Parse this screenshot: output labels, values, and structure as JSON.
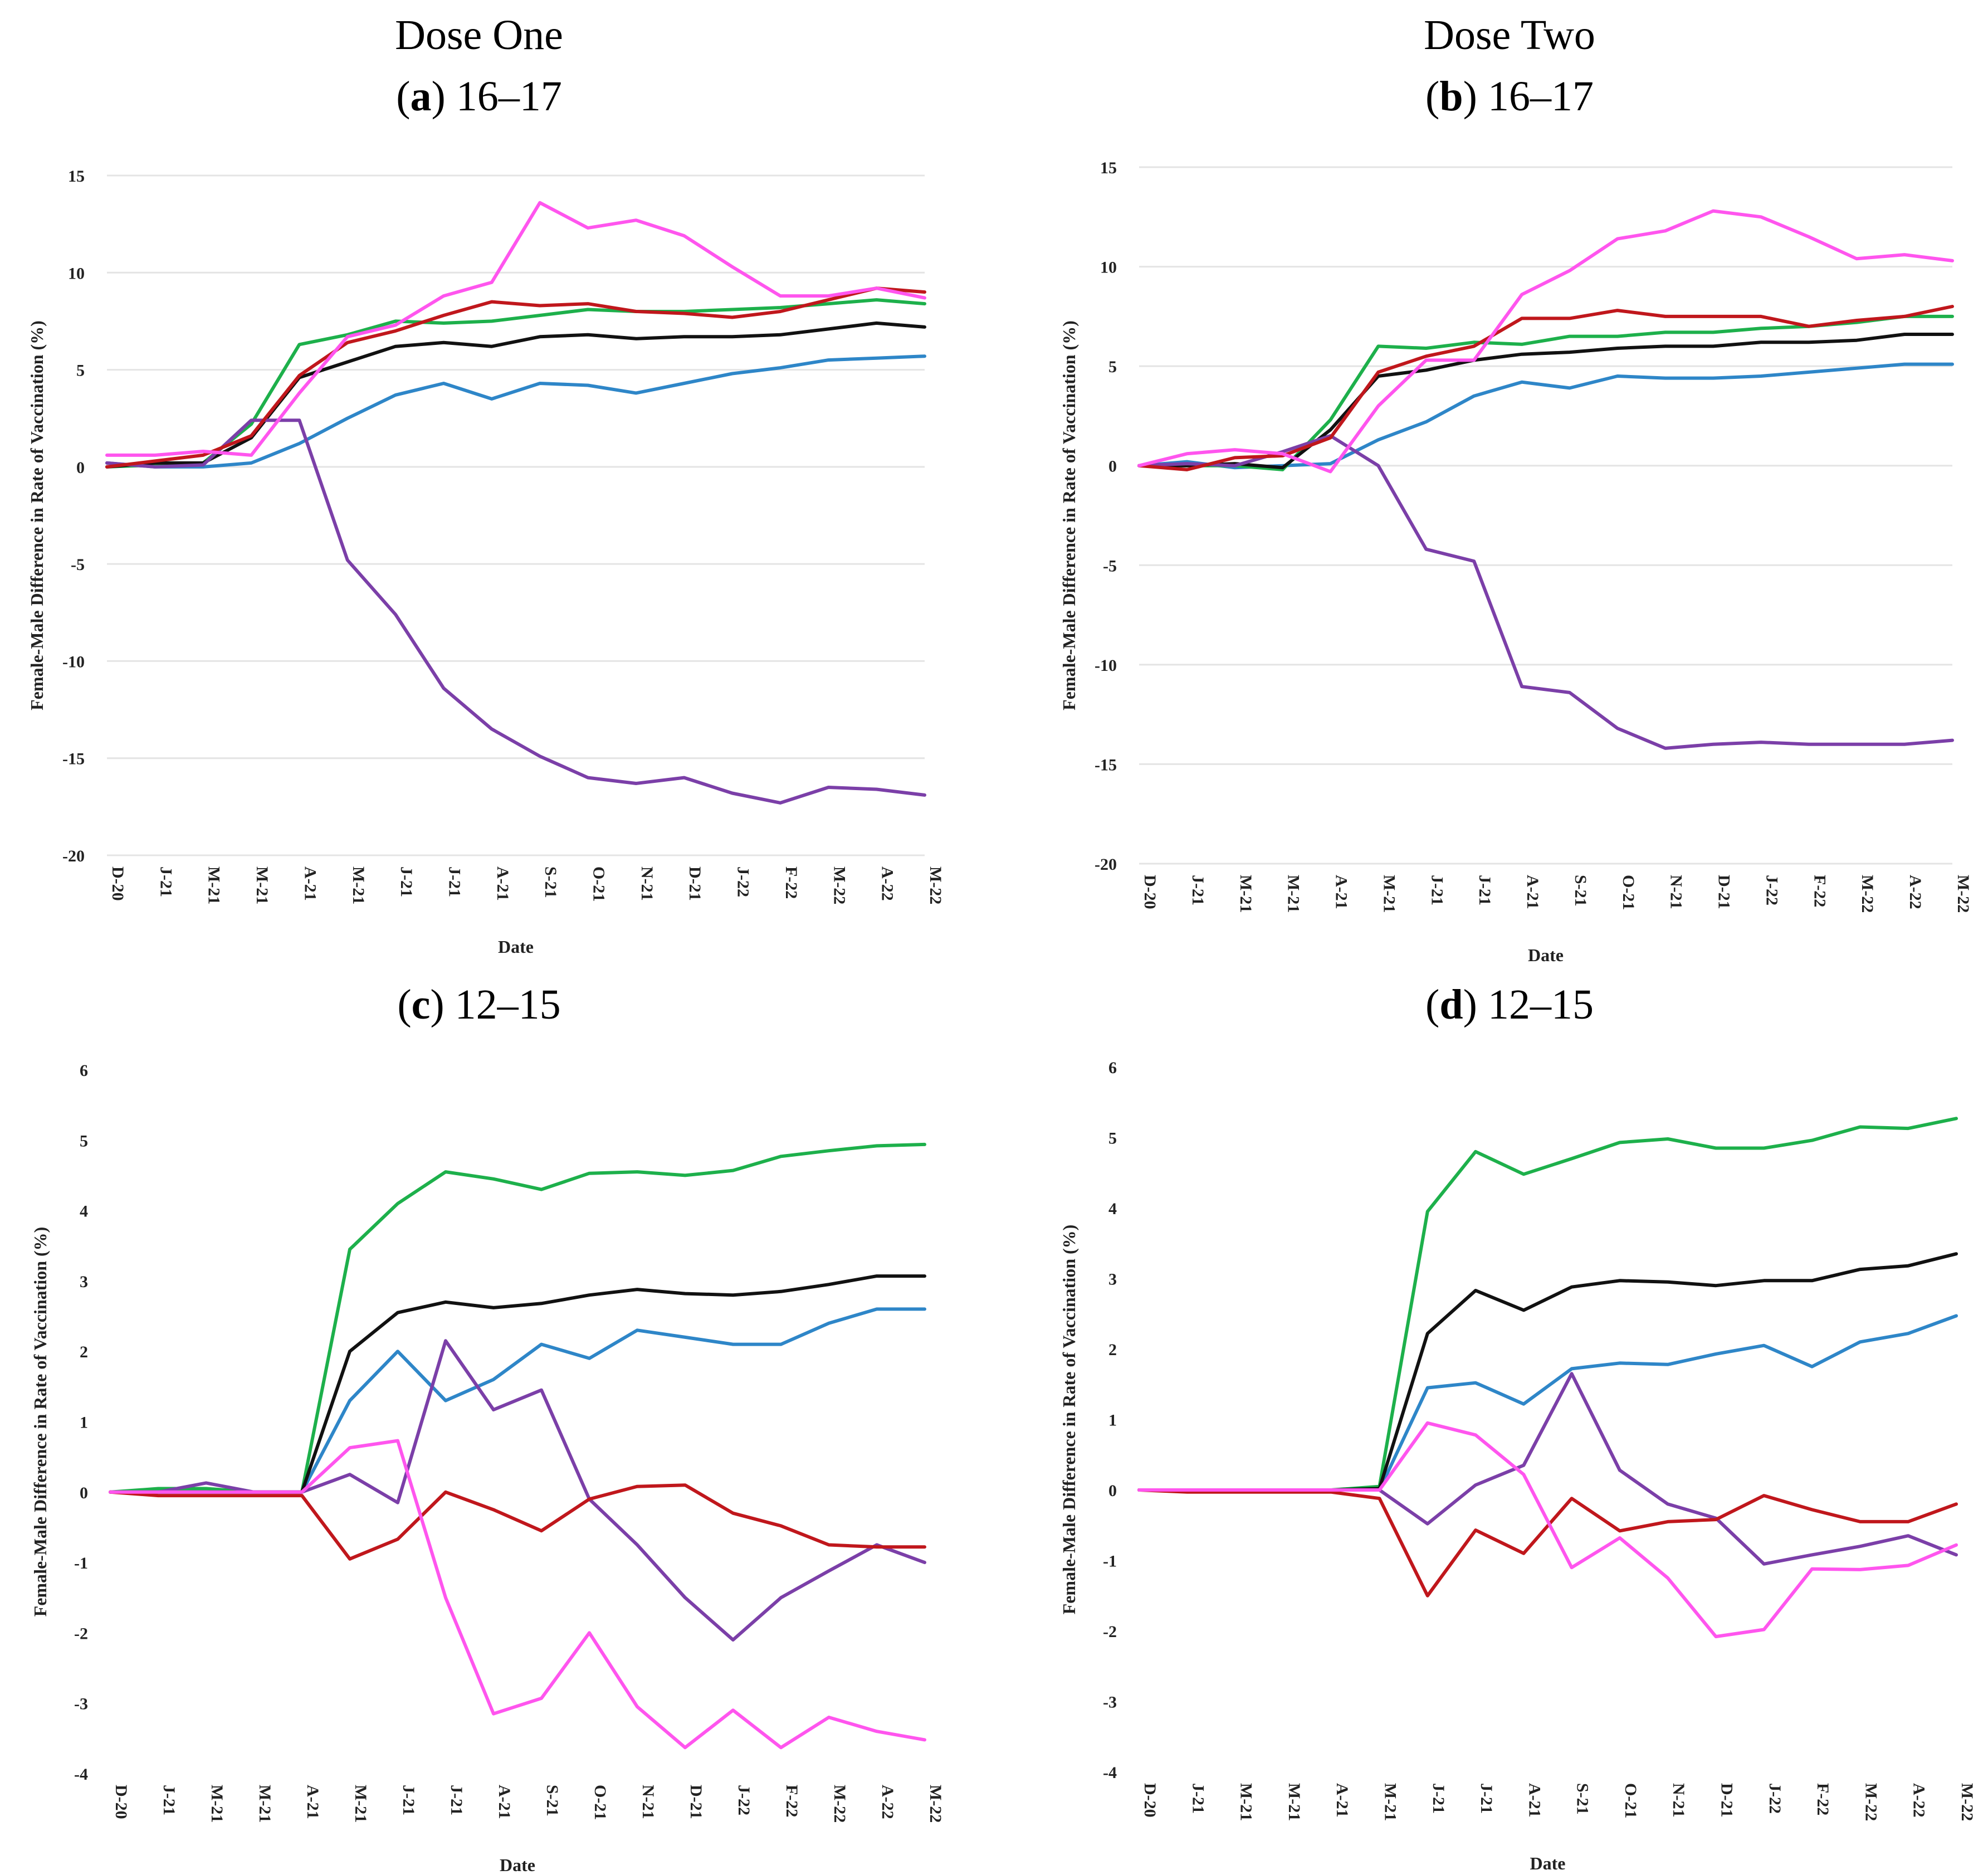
{
  "column_titles": [
    "Dose One",
    "Dose Two"
  ],
  "colors": {
    "blue": "#2E86C8",
    "green": "#1DB04B",
    "black": "#111111",
    "purple": "#7B3FA8",
    "red": "#C0171C",
    "pink": "#FF55EE",
    "grid": "#E4E4E4"
  },
  "panels": [
    {
      "letter": "a",
      "label": "16–17"
    },
    {
      "letter": "b",
      "label": "16–17"
    },
    {
      "letter": "c",
      "label": "12–15"
    },
    {
      "letter": "d",
      "label": "12–15"
    }
  ],
  "chart_data": [
    {
      "type": "line",
      "xlabel": "Date",
      "ylabel": "Female-Male Difference in Rate of Vaccination (%)",
      "categories": [
        "D-20",
        "J-21",
        "M-21",
        "M-21",
        "A-21",
        "M-21",
        "J-21",
        "J-21",
        "A-21",
        "S-21",
        "O-21",
        "N-21",
        "D-21",
        "J-22",
        "F-22",
        "M-22",
        "A-22",
        "M-22"
      ],
      "ylim": [
        -20,
        15
      ],
      "yticks": [
        -20,
        -15,
        -10,
        -5,
        0,
        5,
        10,
        15
      ],
      "grid": true,
      "series": [
        {
          "color": "blue",
          "values": [
            0.2,
            0.0,
            0.0,
            0.2,
            1.2,
            2.5,
            3.7,
            4.3,
            3.5,
            4.3,
            4.2,
            3.8,
            4.3,
            4.8,
            5.1,
            5.5,
            5.6,
            5.7
          ]
        },
        {
          "color": "green",
          "values": [
            0.0,
            0.1,
            0.2,
            2.2,
            6.3,
            6.8,
            7.5,
            7.4,
            7.5,
            7.8,
            8.1,
            8.0,
            8.0,
            8.1,
            8.2,
            8.4,
            8.6,
            8.4
          ]
        },
        {
          "color": "black",
          "values": [
            0.0,
            0.2,
            0.2,
            1.5,
            4.6,
            5.4,
            6.2,
            6.4,
            6.2,
            6.7,
            6.8,
            6.6,
            6.7,
            6.7,
            6.8,
            7.1,
            7.4,
            7.2
          ]
        },
        {
          "color": "purple",
          "values": [
            0.2,
            0.0,
            0.1,
            2.4,
            2.4,
            -4.8,
            -7.6,
            -11.4,
            -13.5,
            -14.9,
            -16.0,
            -16.3,
            -16.0,
            -16.8,
            -17.3,
            -16.5,
            -16.6,
            -16.9
          ]
        },
        {
          "color": "red",
          "values": [
            0.0,
            0.3,
            0.6,
            1.6,
            4.7,
            6.4,
            7.0,
            7.8,
            8.5,
            8.3,
            8.4,
            8.0,
            7.9,
            7.7,
            8.0,
            8.6,
            9.2,
            9.0
          ]
        },
        {
          "color": "pink",
          "values": [
            0.6,
            0.6,
            0.8,
            0.6,
            3.8,
            6.7,
            7.3,
            8.8,
            9.5,
            13.6,
            12.3,
            12.7,
            11.9,
            10.3,
            8.8,
            8.8,
            9.2,
            8.7
          ]
        }
      ]
    },
    {
      "type": "line",
      "xlabel": "Date",
      "ylabel": "Female-Male Difference in Rate of Vaccination (%)",
      "categories": [
        "D-20",
        "J-21",
        "M-21",
        "M-21",
        "A-21",
        "M-21",
        "J-21",
        "J-21",
        "A-21",
        "S-21",
        "O-21",
        "N-21",
        "D-21",
        "J-22",
        "F-22",
        "M-22",
        "A-22",
        "M-22"
      ],
      "ylim": [
        -20,
        15
      ],
      "yticks": [
        -20,
        -15,
        -10,
        -5,
        0,
        5,
        10,
        15
      ],
      "grid": true,
      "series": [
        {
          "color": "blue",
          "values": [
            0.0,
            0.2,
            -0.1,
            0.0,
            0.1,
            1.3,
            2.2,
            3.5,
            4.2,
            3.9,
            4.5,
            4.4,
            4.4,
            4.5,
            4.7,
            4.9,
            5.1,
            5.1
          ]
        },
        {
          "color": "green",
          "values": [
            0.0,
            0.0,
            0.0,
            -0.2,
            2.3,
            6.0,
            5.9,
            6.2,
            6.1,
            6.5,
            6.5,
            6.7,
            6.7,
            6.9,
            7.0,
            7.2,
            7.5,
            7.5
          ]
        },
        {
          "color": "black",
          "values": [
            0.0,
            0.0,
            0.1,
            -0.1,
            1.8,
            4.5,
            4.8,
            5.3,
            5.6,
            5.7,
            5.9,
            6.0,
            6.0,
            6.2,
            6.2,
            6.3,
            6.6,
            6.6
          ]
        },
        {
          "color": "purple",
          "values": [
            0.0,
            0.1,
            0.0,
            0.7,
            1.5,
            0.0,
            -4.2,
            -4.8,
            -11.1,
            -11.4,
            -13.2,
            -14.2,
            -14.0,
            -13.9,
            -14.0,
            -14.0,
            -14.0,
            -13.8
          ]
        },
        {
          "color": "red",
          "values": [
            0.0,
            -0.2,
            0.4,
            0.5,
            1.4,
            4.7,
            5.5,
            6.0,
            7.4,
            7.4,
            7.8,
            7.5,
            7.5,
            7.5,
            7.0,
            7.3,
            7.5,
            8.0
          ]
        },
        {
          "color": "pink",
          "values": [
            0.0,
            0.6,
            0.8,
            0.6,
            -0.3,
            3.0,
            5.3,
            5.3,
            8.6,
            9.8,
            11.4,
            11.8,
            12.8,
            12.5,
            11.5,
            10.4,
            10.6,
            10.3
          ]
        }
      ]
    },
    {
      "type": "line",
      "xlabel": "Date",
      "ylabel": "Female-Male Difference in Rate of Vaccination (%)",
      "categories": [
        "D-20",
        "J-21",
        "M-21",
        "M-21",
        "A-21",
        "M-21",
        "J-21",
        "J-21",
        "A-21",
        "S-21",
        "O-21",
        "N-21",
        "D-21",
        "J-22",
        "F-22",
        "M-22",
        "A-22",
        "M-22"
      ],
      "ylim": [
        -4,
        6
      ],
      "yticks": [
        -4,
        -3,
        -2,
        -1,
        0,
        1,
        2,
        3,
        4,
        5,
        6
      ],
      "grid": false,
      "series": [
        {
          "color": "blue",
          "values": [
            0.0,
            0.0,
            0.0,
            0.0,
            0.0,
            1.3,
            2.0,
            1.3,
            1.6,
            2.1,
            1.9,
            2.3,
            2.2,
            2.1,
            2.1,
            2.4,
            2.6,
            2.6
          ]
        },
        {
          "color": "green",
          "values": [
            0.0,
            0.05,
            0.05,
            0.0,
            0.0,
            3.45,
            4.1,
            4.55,
            4.45,
            4.3,
            4.53,
            4.55,
            4.5,
            4.57,
            4.77,
            4.85,
            4.92,
            4.94
          ]
        },
        {
          "color": "black",
          "values": [
            0.0,
            0.0,
            0.0,
            0.0,
            0.0,
            2.0,
            2.55,
            2.7,
            2.62,
            2.68,
            2.8,
            2.88,
            2.82,
            2.8,
            2.85,
            2.95,
            3.07,
            3.07
          ]
        },
        {
          "color": "purple",
          "values": [
            0.0,
            0.0,
            0.13,
            0.0,
            0.0,
            0.25,
            -0.15,
            2.15,
            1.17,
            1.45,
            -0.1,
            -0.75,
            -1.5,
            -2.1,
            -1.5,
            -1.12,
            -0.75,
            -1.0
          ]
        },
        {
          "color": "red",
          "values": [
            0.0,
            -0.05,
            -0.05,
            -0.05,
            -0.05,
            -0.95,
            -0.67,
            0.0,
            -0.25,
            -0.55,
            -0.1,
            0.08,
            0.1,
            -0.3,
            -0.48,
            -0.75,
            -0.78,
            -0.78
          ]
        },
        {
          "color": "pink",
          "values": [
            0.0,
            0.0,
            0.0,
            0.0,
            0.0,
            0.63,
            0.73,
            -1.5,
            -3.15,
            -2.93,
            -2.0,
            -3.05,
            -3.63,
            -3.1,
            -3.63,
            -3.2,
            -3.4,
            -3.52
          ]
        }
      ]
    },
    {
      "type": "line",
      "xlabel": "Date",
      "ylabel": "Female-Male Difference in Rate of Vaccination (%)",
      "categories": [
        "D-20",
        "J-21",
        "M-21",
        "M-21",
        "A-21",
        "M-21",
        "J-21",
        "J-21",
        "A-21",
        "S-21",
        "O-21",
        "N-21",
        "D-21",
        "J-22",
        "F-22",
        "M-22",
        "A-22",
        "M-22"
      ],
      "ylim": [
        -4,
        6
      ],
      "yticks": [
        -4,
        -3,
        -2,
        -1,
        0,
        1,
        2,
        3,
        4,
        5,
        6
      ],
      "grid": false,
      "series": [
        {
          "color": "blue",
          "values": [
            0.0,
            0.0,
            0.0,
            0.0,
            0.0,
            0.0,
            1.45,
            1.52,
            1.22,
            1.72,
            1.8,
            1.78,
            1.93,
            2.05,
            1.75,
            2.1,
            2.22,
            2.47
          ]
        },
        {
          "color": "green",
          "values": [
            0.0,
            0.0,
            0.0,
            0.0,
            0.0,
            0.05,
            3.95,
            4.8,
            4.48,
            4.7,
            4.93,
            4.98,
            4.85,
            4.85,
            4.96,
            5.15,
            5.13,
            5.27
          ]
        },
        {
          "color": "black",
          "values": [
            0.0,
            0.0,
            0.0,
            0.0,
            0.0,
            0.02,
            2.22,
            2.83,
            2.55,
            2.88,
            2.97,
            2.95,
            2.9,
            2.97,
            2.97,
            3.13,
            3.18,
            3.35
          ]
        },
        {
          "color": "purple",
          "values": [
            0.0,
            0.0,
            0.0,
            0.0,
            0.0,
            0.0,
            -0.48,
            0.07,
            0.35,
            1.65,
            0.28,
            -0.2,
            -0.4,
            -1.05,
            -0.92,
            -0.8,
            -0.65,
            -0.92
          ]
        },
        {
          "color": "red",
          "values": [
            0.0,
            -0.03,
            -0.03,
            -0.03,
            -0.03,
            -0.12,
            -1.5,
            -0.57,
            -0.9,
            -0.12,
            -0.58,
            -0.45,
            -0.42,
            -0.08,
            -0.28,
            -0.45,
            -0.45,
            -0.2
          ]
        },
        {
          "color": "pink",
          "values": [
            0.0,
            0.0,
            0.0,
            0.0,
            0.0,
            0.0,
            0.95,
            0.78,
            0.22,
            -1.1,
            -0.68,
            -1.25,
            -2.08,
            -1.98,
            -1.12,
            -1.13,
            -1.07,
            -0.78
          ]
        }
      ]
    }
  ]
}
